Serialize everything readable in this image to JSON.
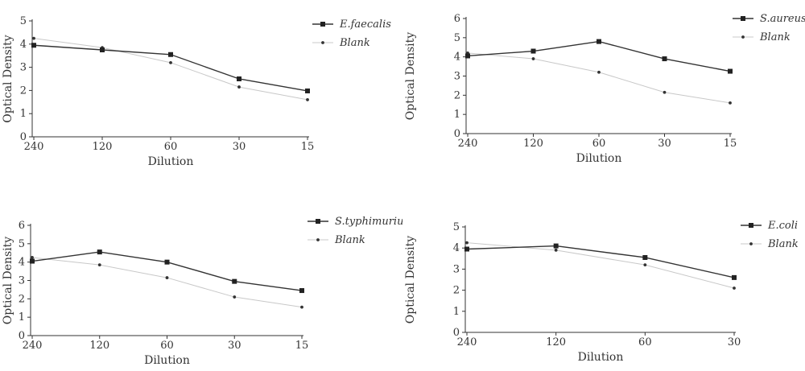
{
  "chart_data": [
    {
      "type": "line",
      "xlabel": "Dilution",
      "ylabel": "Optical Density",
      "categories": [
        "240",
        "120",
        "60",
        "30",
        "15"
      ],
      "ylim": [
        0,
        5
      ],
      "yticks": [
        0,
        1,
        2,
        3,
        4,
        5
      ],
      "legend_position": "top-right",
      "grid": false,
      "series": [
        {
          "name": "E.faecalis",
          "values": [
            3.95,
            3.75,
            3.55,
            2.5,
            1.98
          ],
          "color": "#333333",
          "marker": "square"
        },
        {
          "name": "Blank",
          "values": [
            4.25,
            3.85,
            3.2,
            2.15,
            1.6
          ],
          "color": "#c8c8c8",
          "marker": "dot"
        }
      ]
    },
    {
      "type": "line",
      "xlabel": "Dilution",
      "ylabel": "Optical Density",
      "categories": [
        "240",
        "120",
        "60",
        "30",
        "15"
      ],
      "ylim": [
        0,
        6
      ],
      "yticks": [
        0,
        1,
        2,
        3,
        4,
        5,
        6
      ],
      "legend_position": "top-right",
      "grid": false,
      "series": [
        {
          "name": "S.aureus",
          "values": [
            4.05,
            4.3,
            4.8,
            3.9,
            3.25
          ],
          "color": "#333333",
          "marker": "square"
        },
        {
          "name": "Blank",
          "values": [
            4.2,
            3.9,
            3.2,
            2.15,
            1.6
          ],
          "color": "#c8c8c8",
          "marker": "dot"
        }
      ]
    },
    {
      "type": "line",
      "xlabel": "Dilution",
      "ylabel": "Optical Density",
      "categories": [
        "240",
        "120",
        "60",
        "30",
        "15"
      ],
      "ylim": [
        0,
        6
      ],
      "yticks": [
        0,
        1,
        2,
        3,
        4,
        5,
        6
      ],
      "legend_position": "top-right",
      "grid": false,
      "series": [
        {
          "name": "S.typhimurium",
          "values": [
            4.05,
            4.55,
            4.0,
            2.95,
            2.45
          ],
          "color": "#333333",
          "marker": "square"
        },
        {
          "name": "Blank",
          "values": [
            4.25,
            3.85,
            3.15,
            2.1,
            1.55
          ],
          "color": "#c8c8c8",
          "marker": "dot"
        }
      ]
    },
    {
      "type": "line",
      "xlabel": "Dilution",
      "ylabel": "Optical Density",
      "categories": [
        "240",
        "120",
        "60",
        "30"
      ],
      "ylim": [
        0,
        5
      ],
      "yticks": [
        0,
        1,
        2,
        3,
        4,
        5
      ],
      "legend_position": "top-right",
      "grid": false,
      "series": [
        {
          "name": "E.coli",
          "values": [
            3.95,
            4.1,
            3.55,
            2.6
          ],
          "color": "#333333",
          "marker": "square"
        },
        {
          "name": "Blank",
          "values": [
            4.25,
            3.9,
            3.2,
            2.1
          ],
          "color": "#c8c8c8",
          "marker": "dot"
        }
      ]
    }
  ]
}
